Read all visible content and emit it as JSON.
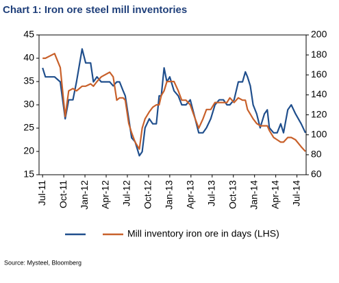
{
  "chart_data": {
    "type": "line",
    "title": "Chart 1: Iron ore steel mill inventories",
    "source": "Source: Mysteel, Bloomberg",
    "x": [
      0,
      0.4,
      1.7,
      2.5,
      3.2,
      3.7,
      4.3,
      4.8,
      5.6,
      6.1,
      6.8,
      7.2,
      7.7,
      8.3,
      9.5,
      10.0,
      10.5,
      10.9,
      11.4,
      11.7,
      12.2,
      12.6,
      13.1,
      13.7,
      14.1,
      14.5,
      15.1,
      15.6,
      16.1,
      16.5,
      16.8,
      17.2,
      17.6,
      18.0,
      18.6,
      19.2,
      19.7,
      20.3,
      20.9,
      21.6,
      22.1,
      22.7,
      23.2,
      23.8,
      24.4,
      25.0,
      25.6,
      26.1,
      26.5,
      27.1,
      27.7,
      28.3,
      28.7,
      29.0,
      29.4,
      29.8,
      30.3,
      30.8,
      31.4,
      31.8,
      32.1,
      32.7,
      33.2,
      33.7,
      34.1,
      34.7,
      35.2,
      35.8,
      36.6,
      37.2
    ],
    "xlim": [
      -0.5,
      37.3
    ],
    "xticks": [
      {
        "value": 0,
        "label": "Jul-11"
      },
      {
        "value": 3,
        "label": "Oct-11"
      },
      {
        "value": 6,
        "label": "Jan-12"
      },
      {
        "value": 9,
        "label": "Apr-12"
      },
      {
        "value": 12,
        "label": "Jul-12"
      },
      {
        "value": 15,
        "label": "Oct-12"
      },
      {
        "value": 18,
        "label": "Jan-13"
      },
      {
        "value": 21,
        "label": "Apr-13"
      },
      {
        "value": 24,
        "label": "Jul-13"
      },
      {
        "value": 27,
        "label": "Oct-13"
      },
      {
        "value": 30,
        "label": "Jan-14"
      },
      {
        "value": 33,
        "label": "Apr-14"
      },
      {
        "value": 36,
        "label": "Jul-14"
      }
    ],
    "ylim": [
      15,
      45
    ],
    "yticks": [
      15,
      20,
      25,
      30,
      35,
      40,
      45
    ],
    "y2lim": [
      60,
      200
    ],
    "y2ticks": [
      60,
      80,
      100,
      120,
      140,
      160,
      180,
      200
    ],
    "series": [
      {
        "color": "#1f4e8c",
        "axis": "y2",
        "values": [
          167,
          158,
          158,
          153,
          116,
          135,
          135,
          153,
          186,
          172,
          172,
          153,
          158,
          153,
          153,
          149,
          153,
          153,
          144,
          139,
          116,
          97,
          93,
          79,
          83,
          107,
          116,
          111,
          111,
          139,
          139,
          167,
          153,
          158,
          144,
          139,
          130,
          130,
          135,
          116,
          102,
          102,
          107,
          116,
          130,
          135,
          135,
          130,
          130,
          135,
          153,
          153,
          163,
          158,
          149,
          130,
          121,
          107,
          121,
          125,
          107,
          102,
          102,
          111,
          102,
          125,
          130,
          121,
          111,
          102
        ]
      },
      {
        "name": "Mill inventory iron ore in days (LHS)",
        "color": "#c8602a",
        "values": [
          40,
          40,
          41,
          38,
          27.5,
          33,
          33.5,
          33,
          34,
          34,
          34.5,
          34,
          35,
          36,
          37,
          36,
          31,
          31.5,
          31.5,
          31,
          26,
          24,
          22,
          20.5,
          25,
          27,
          28.5,
          29.5,
          30,
          30,
          32,
          33,
          35,
          35,
          35,
          33,
          31,
          31,
          30,
          27,
          25,
          27,
          29,
          29,
          30.5,
          30.5,
          30.5,
          30.5,
          31.5,
          30.5,
          31.5,
          31,
          31,
          29,
          28,
          27,
          26,
          25.5,
          25.5,
          25.5,
          24.5,
          23,
          22.5,
          22,
          22,
          23,
          23,
          22.5,
          21,
          20
        ]
      }
    ]
  }
}
